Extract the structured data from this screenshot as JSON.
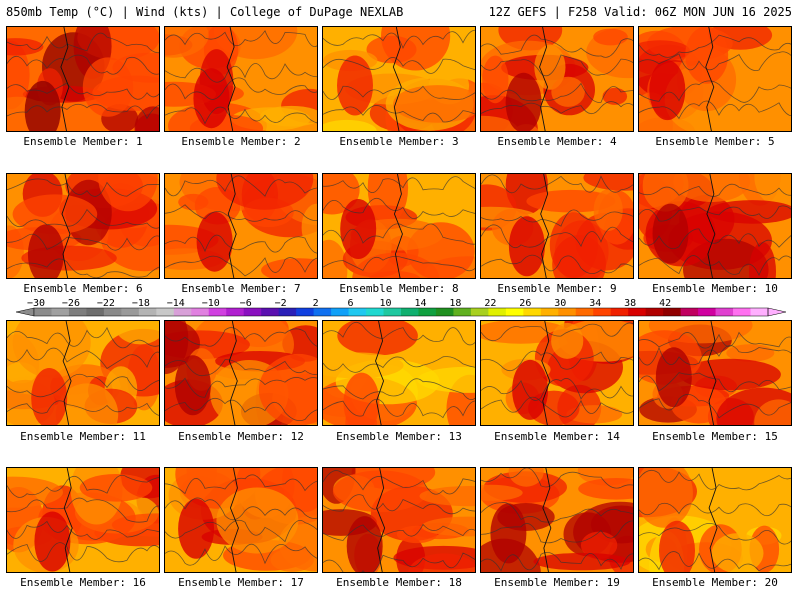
{
  "header": {
    "left": "850mb Temp (°C) | Wind (kts) | College of DuPage NEXLAB",
    "right": "12Z GEFS | F258 Valid: 06Z MON JUN 16 2025"
  },
  "members": [
    {
      "label": "Ensemble Member: 1",
      "warmth": 0.78
    },
    {
      "label": "Ensemble Member: 2",
      "warmth": 0.6
    },
    {
      "label": "Ensemble Member: 3",
      "warmth": 0.45
    },
    {
      "label": "Ensemble Member: 4",
      "warmth": 0.65
    },
    {
      "label": "Ensemble Member: 5",
      "warmth": 0.62
    },
    {
      "label": "Ensemble Member: 6",
      "warmth": 0.7
    },
    {
      "label": "Ensemble Member: 7",
      "warmth": 0.6
    },
    {
      "label": "Ensemble Member: 8",
      "warmth": 0.55
    },
    {
      "label": "Ensemble Member: 9",
      "warmth": 0.62
    },
    {
      "label": "Ensemble Member: 10",
      "warmth": 0.66
    },
    {
      "label": "Ensemble Member: 11",
      "warmth": 0.5
    },
    {
      "label": "Ensemble Member: 12",
      "warmth": 0.74
    },
    {
      "label": "Ensemble Member: 13",
      "warmth": 0.42
    },
    {
      "label": "Ensemble Member: 14",
      "warmth": 0.55
    },
    {
      "label": "Ensemble Member: 15",
      "warmth": 0.72
    },
    {
      "label": "Ensemble Member: 16",
      "warmth": 0.55
    },
    {
      "label": "Ensemble Member: 17",
      "warmth": 0.58
    },
    {
      "label": "Ensemble Member: 18",
      "warmth": 0.68
    },
    {
      "label": "Ensemble Member: 19",
      "warmth": 0.72
    },
    {
      "label": "Ensemble Member: 20",
      "warmth": 0.48
    }
  ],
  "colorbar": {
    "labels": [
      "−30",
      "−26",
      "−22",
      "−18",
      "−14",
      "−10",
      "−6",
      "−2",
      "2",
      "6",
      "10",
      "14",
      "18",
      "22",
      "26",
      "30",
      "34",
      "38",
      "42"
    ],
    "colors": [
      "#8c8c8c",
      "#a0a0a0",
      "#7e7e7e",
      "#6e6e6e",
      "#8a8a8a",
      "#9a9a9a",
      "#b4b4b4",
      "#c8c8c8",
      "#d8a0d8",
      "#e080e0",
      "#d040e0",
      "#b020d0",
      "#8a10c0",
      "#5a10b0",
      "#2a20b8",
      "#1040e0",
      "#1070f0",
      "#10a0f8",
      "#20c8f0",
      "#20d8d0",
      "#20c8a0",
      "#10b070",
      "#10a040",
      "#209020",
      "#60b020",
      "#a8d020",
      "#e0f000",
      "#ffff00",
      "#ffd800",
      "#ffb000",
      "#ff9000",
      "#ff6a00",
      "#ff4400",
      "#f02000",
      "#d80000",
      "#b00000",
      "#900000",
      "#c00060",
      "#d000a0",
      "#e040d0",
      "#ff70f0",
      "#ffb0ff"
    ]
  }
}
